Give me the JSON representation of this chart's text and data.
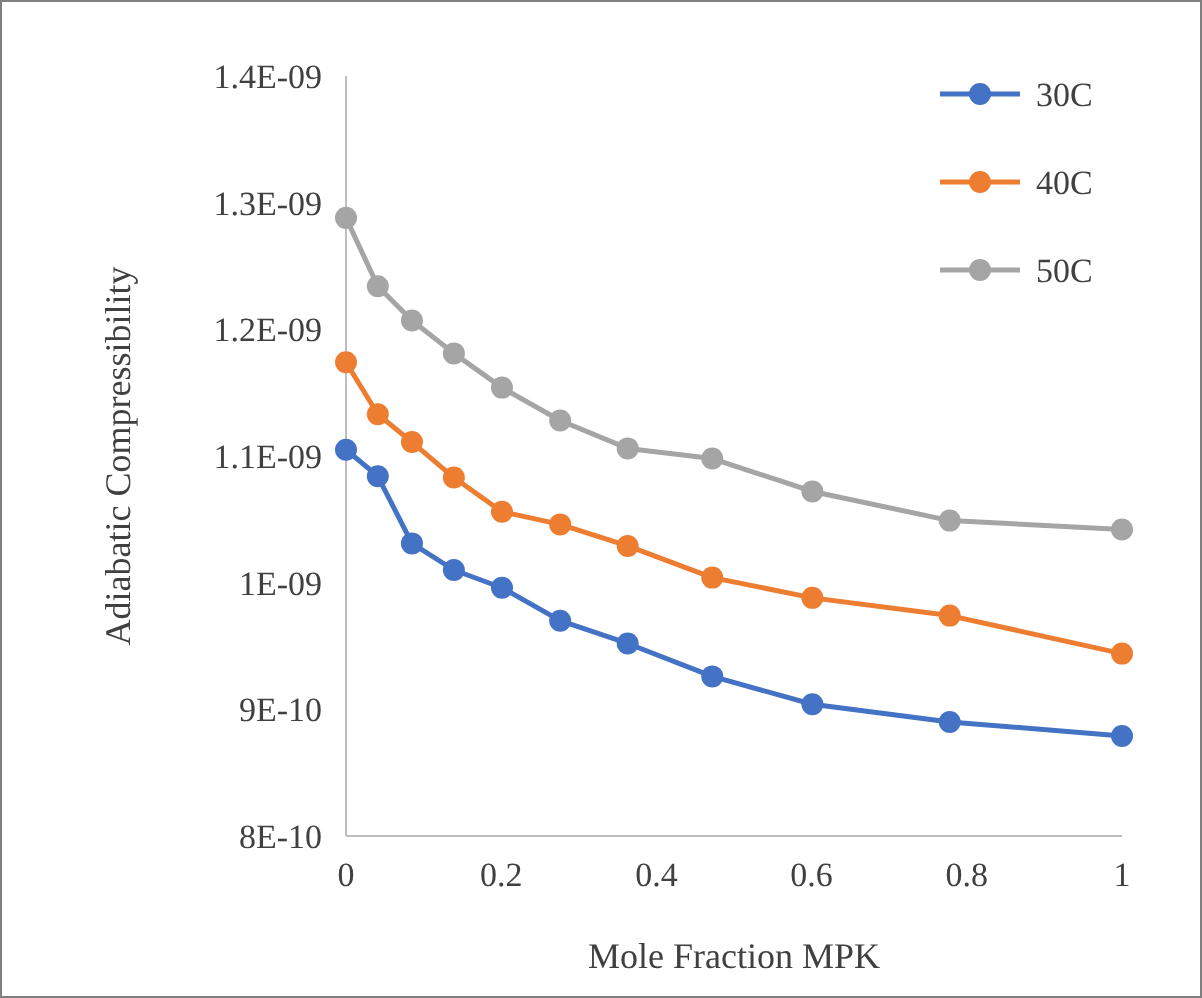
{
  "chart_data": {
    "type": "line",
    "xlabel": "Mole Fraction MPK",
    "ylabel": "Adiabatic Compressibility",
    "x": [
      0,
      0.041,
      0.085,
      0.139,
      0.201,
      0.276,
      0.363,
      0.472,
      0.601,
      0.778,
      1
    ],
    "series": [
      {
        "name": "30C",
        "color": "#4472c4",
        "values": [
          1.105e-09,
          1.084e-09,
          1.031e-09,
          1.01e-09,
          9.96e-10,
          9.7e-10,
          9.52e-10,
          9.26e-10,
          9.04e-10,
          8.9e-10,
          8.79e-10
        ]
      },
      {
        "name": "40C",
        "color": "#ed7d31",
        "values": [
          1.174e-09,
          1.133e-09,
          1.111e-09,
          1.083e-09,
          1.056e-09,
          1.046e-09,
          1.029e-09,
          1.004e-09,
          9.88e-10,
          9.74e-10,
          9.44e-10
        ]
      },
      {
        "name": "50C",
        "color": "#a5a5a5",
        "values": [
          1.288e-09,
          1.234e-09,
          1.207e-09,
          1.181e-09,
          1.154e-09,
          1.128e-09,
          1.106e-09,
          1.098e-09,
          1.072e-09,
          1.049e-09,
          1.042e-09
        ]
      }
    ],
    "xlim": [
      0,
      1
    ],
    "xticks": [
      0,
      0.2,
      0.4,
      0.6,
      0.8,
      1
    ],
    "ylim": [
      8e-10,
      1.4e-09
    ],
    "yticks": [
      {
        "value": 8e-10,
        "label": "8E-10"
      },
      {
        "value": 9e-10,
        "label": "9E-10"
      },
      {
        "value": 1e-09,
        "label": "1E-09"
      },
      {
        "value": 1.1e-09,
        "label": "1.1E-09"
      },
      {
        "value": 1.2e-09,
        "label": "1.2E-09"
      },
      {
        "value": 1.3e-09,
        "label": "1.3E-09"
      },
      {
        "value": 1.4e-09,
        "label": "1.4E-09"
      }
    ],
    "grid": false,
    "legend": "top right",
    "marker": "circle",
    "line_style": "solid"
  }
}
